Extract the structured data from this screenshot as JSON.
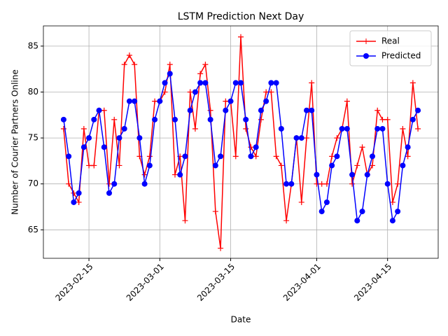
{
  "chart_data": {
    "type": "line",
    "title": "LSTM Prediction Next Day",
    "x_label": "Date",
    "y_label": "Number of Courier Partners Online",
    "x": [
      "2023-02-10",
      "2023-02-11",
      "2023-02-12",
      "2023-02-13",
      "2023-02-14",
      "2023-02-15",
      "2023-02-16",
      "2023-02-17",
      "2023-02-18",
      "2023-02-19",
      "2023-02-20",
      "2023-02-21",
      "2023-02-22",
      "2023-02-23",
      "2023-02-24",
      "2023-02-25",
      "2023-02-26",
      "2023-02-27",
      "2023-02-28",
      "2023-03-01",
      "2023-03-02",
      "2023-03-03",
      "2023-03-04",
      "2023-03-05",
      "2023-03-06",
      "2023-03-07",
      "2023-03-08",
      "2023-03-09",
      "2023-03-10",
      "2023-03-11",
      "2023-03-12",
      "2023-03-13",
      "2023-03-14",
      "2023-03-15",
      "2023-03-16",
      "2023-03-17",
      "2023-03-18",
      "2023-03-19",
      "2023-03-20",
      "2023-03-21",
      "2023-03-22",
      "2023-03-23",
      "2023-03-24",
      "2023-03-25",
      "2023-03-26",
      "2023-03-27",
      "2023-03-28",
      "2023-03-29",
      "2023-03-30",
      "2023-03-31",
      "2023-04-01",
      "2023-04-02",
      "2023-04-03",
      "2023-04-04",
      "2023-04-05",
      "2023-04-06",
      "2023-04-07",
      "2023-04-08",
      "2023-04-09",
      "2023-04-10",
      "2023-04-11",
      "2023-04-12",
      "2023-04-13",
      "2023-04-14",
      "2023-04-15",
      "2023-04-16",
      "2023-04-17",
      "2023-04-18",
      "2023-04-19",
      "2023-04-20",
      "2023-04-21"
    ],
    "series": [
      {
        "name": "Real",
        "color": "#ff0000",
        "marker": "+",
        "values": [
          76,
          70,
          69,
          68,
          76,
          72,
          72,
          78,
          78,
          70,
          77,
          72,
          83,
          84,
          83,
          73,
          71,
          73,
          79,
          79,
          80,
          83,
          71,
          73,
          66,
          80,
          76,
          82,
          83,
          78,
          67,
          63,
          79,
          79,
          73,
          86,
          76,
          74,
          73,
          77,
          80,
          80,
          73,
          72,
          66,
          70,
          75,
          68,
          75,
          81,
          70,
          70,
          70,
          73,
          75,
          76,
          79,
          70,
          72,
          74,
          71,
          72,
          78,
          77,
          77,
          68,
          70,
          76,
          73,
          81,
          76
        ]
      },
      {
        "name": "Predicted",
        "color": "#0000ff",
        "marker": "o",
        "values": [
          77,
          73,
          68,
          69,
          74,
          75,
          77,
          78,
          74,
          69,
          70,
          75,
          76,
          79,
          79,
          75,
          70,
          72,
          77,
          79,
          81,
          82,
          77,
          71,
          73,
          78,
          80,
          81,
          81,
          77,
          72,
          73,
          78,
          79,
          81,
          81,
          77,
          73,
          74,
          78,
          79,
          81,
          81,
          76,
          70,
          70,
          75,
          75,
          78,
          78,
          71,
          67,
          68,
          72,
          73,
          76,
          76,
          71,
          66,
          67,
          71,
          73,
          76,
          76,
          70,
          66,
          67,
          72,
          74,
          77,
          78
        ]
      }
    ],
    "xlim": [
      "2023-02-06",
      "2023-04-25"
    ],
    "xticks": [
      "2023-02-15",
      "2023-03-01",
      "2023-03-15",
      "2023-04-01",
      "2023-04-15"
    ],
    "ylim": [
      61.9,
      87.2
    ],
    "yticks": [
      65,
      70,
      75,
      80,
      85
    ],
    "grid": true,
    "legend": "upper right"
  }
}
